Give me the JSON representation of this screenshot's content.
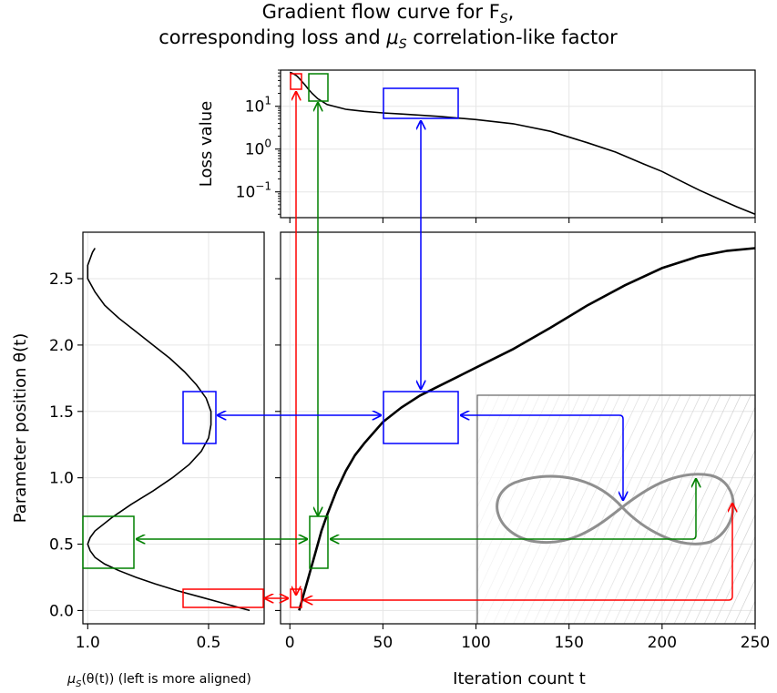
{
  "title_line1": "Gradient flow curve for F",
  "title_line1_sub": "S",
  "title_line1_end": ",",
  "title_line2_start": "corresponding loss and ",
  "title_line2_mu": "μ",
  "title_line2_sub": "S",
  "title_line2_end": " correlation-like factor",
  "chart_data": [
    {
      "id": "loss-panel",
      "type": "line",
      "ylabel": "Loss value",
      "yscale": "log",
      "xlim": [
        -5,
        250
      ],
      "ylim": [
        0.025,
        70
      ],
      "ytick_labels": [
        {
          "value": 10,
          "base": "10",
          "exp": "1"
        },
        {
          "value": 1,
          "base": "10",
          "exp": "0"
        },
        {
          "value": 0.1,
          "base": "10",
          "exp": "−1"
        }
      ],
      "grid": true,
      "series": [
        {
          "x": [
            0,
            1,
            2,
            3,
            4,
            5,
            6,
            8,
            10,
            12,
            15,
            20,
            30,
            40,
            50,
            60,
            80,
            100,
            120,
            140,
            160,
            175,
            190,
            200,
            210,
            220,
            230,
            240,
            250
          ],
          "y": [
            62,
            60,
            57,
            54,
            50,
            45,
            40,
            32,
            25,
            20,
            15,
            11,
            8.5,
            7.6,
            7.0,
            6.6,
            5.8,
            4.9,
            3.9,
            2.6,
            1.4,
            0.85,
            0.45,
            0.3,
            0.18,
            0.11,
            0.07,
            0.045,
            0.03
          ]
        }
      ]
    },
    {
      "id": "mu-panel",
      "type": "line",
      "xlabel_mu": "μ",
      "xlabel_sub": "S",
      "xlabel_rest": "(θ(t)) (left is more aligned)",
      "xlim": [
        1.02,
        0.27
      ],
      "xtick_labels": [
        "1.0",
        "0.5"
      ],
      "xticks": [
        1.0,
        0.5
      ],
      "grid": true,
      "series": [
        {
          "theta": [
            0,
            0.05,
            0.1,
            0.15,
            0.2,
            0.25,
            0.3,
            0.35,
            0.4,
            0.45,
            0.5,
            0.55,
            0.6,
            0.7,
            0.8,
            0.9,
            1.0,
            1.1,
            1.2,
            1.3,
            1.4,
            1.5,
            1.6,
            1.7,
            1.8,
            1.9,
            2.0,
            2.1,
            2.2,
            2.3,
            2.4,
            2.5,
            2.6,
            2.7,
            2.73
          ],
          "mu": [
            0.33,
            0.43,
            0.53,
            0.63,
            0.72,
            0.8,
            0.87,
            0.93,
            0.97,
            0.99,
            1.0,
            0.99,
            0.97,
            0.9,
            0.82,
            0.73,
            0.65,
            0.58,
            0.53,
            0.5,
            0.49,
            0.49,
            0.51,
            0.55,
            0.6,
            0.66,
            0.73,
            0.8,
            0.87,
            0.93,
            0.97,
            1.0,
            1.0,
            0.98,
            0.97
          ]
        }
      ]
    },
    {
      "id": "theta-panel",
      "type": "line",
      "xlabel": "Iteration count t",
      "ylabel": "Parameter position θ(t)",
      "xlim": [
        -5,
        250
      ],
      "ylim": [
        -0.1,
        2.85
      ],
      "xticks": [
        0,
        50,
        100,
        150,
        200,
        250
      ],
      "xtick_labels": [
        "0",
        "50",
        "100",
        "150",
        "200",
        "250"
      ],
      "yticks": [
        0.0,
        0.5,
        1.0,
        1.5,
        2.0,
        2.5
      ],
      "ytick_labels": [
        "0.0",
        "0.5",
        "1.0",
        "1.5",
        "2.0",
        "2.5"
      ],
      "grid": true,
      "series": [
        {
          "t": [
            5,
            7,
            9,
            11,
            13,
            15,
            17,
            20,
            25,
            30,
            35,
            40,
            50,
            60,
            70,
            80,
            90,
            100,
            120,
            140,
            160,
            180,
            200,
            220,
            235,
            250
          ],
          "theta": [
            0.0,
            0.1,
            0.2,
            0.3,
            0.4,
            0.5,
            0.6,
            0.72,
            0.9,
            1.05,
            1.17,
            1.26,
            1.42,
            1.53,
            1.62,
            1.69,
            1.76,
            1.83,
            1.97,
            2.13,
            2.3,
            2.45,
            2.58,
            2.67,
            2.71,
            2.73
          ]
        }
      ]
    }
  ],
  "colors": {
    "red": "#ff0000",
    "green": "#008000",
    "blue": "#0000ff",
    "curve": "#000000",
    "inset_curve": "#888888",
    "hatch": "#bdbdbd"
  }
}
